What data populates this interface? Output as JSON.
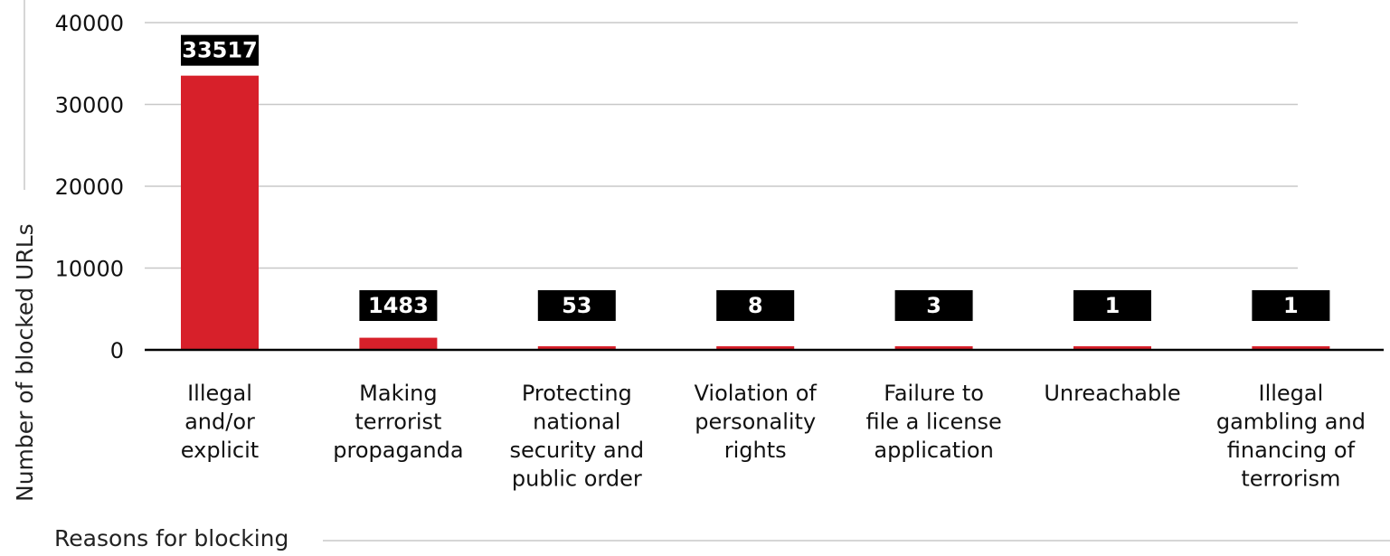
{
  "chart_data": {
    "type": "bar",
    "ylabel": "Number of blocked URLs",
    "xlabel": "Reasons for blocking",
    "ylim": [
      0,
      40000
    ],
    "yticks": [
      "0",
      "10000",
      "20000",
      "30000",
      "40000"
    ],
    "grid": true,
    "categories": [
      [
        "Illegal",
        "and/or",
        "explicit"
      ],
      [
        "Making",
        "terrorist",
        "propaganda"
      ],
      [
        "Protecting",
        "national",
        "security and",
        "public order"
      ],
      [
        "Violation of",
        "personality",
        "rights"
      ],
      [
        "Failure to",
        "file a license",
        "application"
      ],
      [
        "Unreachable"
      ],
      [
        "Illegal",
        "gambling and",
        "financing of",
        "terrorism"
      ]
    ],
    "values": [
      33517,
      1483,
      53,
      8,
      3,
      1,
      1
    ],
    "value_labels": [
      "33517",
      "1483",
      "53",
      "8",
      "3",
      "1",
      "1"
    ],
    "colors": {
      "bar": "#d7202a",
      "badge": "#000000",
      "grid": "#c8c8c8",
      "axis": "#000000"
    }
  }
}
